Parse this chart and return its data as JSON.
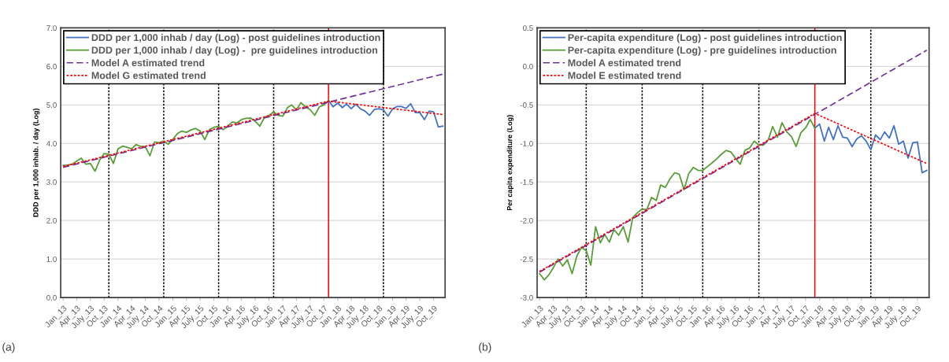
{
  "chart_data": [
    {
      "type": "line",
      "ylabel": "DDD per 1,000 inhab. / day (Log)",
      "annotations": [
        "(a)"
      ],
      "xlim": [
        "2012-12-16",
        "2019-12-16"
      ],
      "xticks": [
        {
          "value": "2013-01",
          "label": "Jan_13"
        },
        {
          "value": "2013-04",
          "label": "Apr_13"
        },
        {
          "value": "2013-07",
          "label": "July_13"
        },
        {
          "value": "2013-10",
          "label": "Oct_13"
        },
        {
          "value": "2014-01",
          "label": "Jan_14"
        },
        {
          "value": "2014-04",
          "label": "Apr_14"
        },
        {
          "value": "2014-07",
          "label": "July_14"
        },
        {
          "value": "2014-10",
          "label": "Oct_14"
        },
        {
          "value": "2015-01",
          "label": "Jan_15"
        },
        {
          "value": "2015-04",
          "label": "Apr_15"
        },
        {
          "value": "2015-07",
          "label": "July_15"
        },
        {
          "value": "2015-10",
          "label": "Oct_15"
        },
        {
          "value": "2016-01",
          "label": "Jan_16"
        },
        {
          "value": "2016-04",
          "label": "Apr_16"
        },
        {
          "value": "2016-07",
          "label": "July_16"
        },
        {
          "value": "2016-10",
          "label": "Oct_16"
        },
        {
          "value": "2017-01",
          "label": "Jan_17"
        },
        {
          "value": "2017-04",
          "label": "Apr_17"
        },
        {
          "value": "2017-07",
          "label": "July_17"
        },
        {
          "value": "2017-10",
          "label": "Oct_17"
        },
        {
          "value": "2018-01",
          "label": "Jan_18"
        },
        {
          "value": "2018-04",
          "label": "Apr_18"
        },
        {
          "value": "2018-07",
          "label": "July_18"
        },
        {
          "value": "2018-10",
          "label": "Oct_18"
        },
        {
          "value": "2019-01",
          "label": "Jan_19"
        },
        {
          "value": "2019-04",
          "label": "Apr_19"
        },
        {
          "value": "2019-07",
          "label": "July_19"
        },
        {
          "value": "2019-10",
          "label": "Oct_19"
        }
      ],
      "ylim": [
        0,
        7
      ],
      "yticks": [
        {
          "value": 0,
          "label": "0.0"
        },
        {
          "value": 1,
          "label": "1.0"
        },
        {
          "value": 2,
          "label": "2.0"
        },
        {
          "value": 3,
          "label": "3.0"
        },
        {
          "value": 4,
          "label": "4.0"
        },
        {
          "value": 5,
          "label": "5.0"
        },
        {
          "value": 6,
          "label": "6.0"
        },
        {
          "value": 7,
          "label": "7.0"
        }
      ],
      "grid": "y",
      "legend": "top left",
      "ref_lines": [
        {
          "axis": "x",
          "value": "2013-11",
          "color": "#000000",
          "line_style": "dotted"
        },
        {
          "axis": "x",
          "value": "2014-11",
          "color": "#000000",
          "line_style": "dotted"
        },
        {
          "axis": "x",
          "value": "2015-11",
          "color": "#000000",
          "line_style": "dotted"
        },
        {
          "axis": "x",
          "value": "2016-11",
          "color": "#000000",
          "line_style": "dotted"
        },
        {
          "axis": "x",
          "value": "2017-11",
          "color": "#ff0000",
          "line_style": "solid"
        },
        {
          "axis": "x",
          "value": "2018-11",
          "color": "#000000",
          "line_style": "dotted"
        }
      ],
      "series": [
        {
          "name": "DDD per 1,000 inhab / day (Log) - post guidelines introduction",
          "color": "#4472c4",
          "line_style": "solid",
          "x": [
            "2017-11",
            "2017-12",
            "2018-01",
            "2018-02",
            "2018-03",
            "2018-04",
            "2018-05",
            "2018-06",
            "2018-07",
            "2018-08",
            "2018-09",
            "2018-10",
            "2018-11",
            "2018-12",
            "2019-01",
            "2019-02",
            "2019-03",
            "2019-04",
            "2019-05",
            "2019-06",
            "2019-07",
            "2019-08",
            "2019-09",
            "2019-10",
            "2019-11",
            "2019-12"
          ],
          "values": [
            5.12,
            4.95,
            5.05,
            4.93,
            5.02,
            4.9,
            5.02,
            4.9,
            4.84,
            4.73,
            4.88,
            4.9,
            4.87,
            4.71,
            4.9,
            4.96,
            4.96,
            4.91,
            5.03,
            4.8,
            4.8,
            4.62,
            4.84,
            4.82,
            4.43,
            4.45
          ]
        },
        {
          "name": "DDD per 1,000 inhab / day (Log) -  pre guidelines introduction",
          "color": "#5a9e3a",
          "line_style": "solid",
          "x": [
            "2013-01",
            "2013-02",
            "2013-03",
            "2013-04",
            "2013-05",
            "2013-06",
            "2013-07",
            "2013-08",
            "2013-09",
            "2013-10",
            "2013-11",
            "2013-12",
            "2014-01",
            "2014-02",
            "2014-03",
            "2014-04",
            "2014-05",
            "2014-06",
            "2014-07",
            "2014-08",
            "2014-09",
            "2014-10",
            "2014-11",
            "2014-12",
            "2015-01",
            "2015-02",
            "2015-03",
            "2015-04",
            "2015-05",
            "2015-06",
            "2015-07",
            "2015-08",
            "2015-09",
            "2015-10",
            "2015-11",
            "2015-12",
            "2016-01",
            "2016-02",
            "2016-03",
            "2016-04",
            "2016-05",
            "2016-06",
            "2016-07",
            "2016-08",
            "2016-09",
            "2016-10",
            "2016-11",
            "2016-12",
            "2017-01",
            "2017-02",
            "2017-03",
            "2017-04",
            "2017-05",
            "2017-06",
            "2017-07",
            "2017-08",
            "2017-09",
            "2017-10",
            "2017-11"
          ],
          "values": [
            3.43,
            3.44,
            3.46,
            3.54,
            3.62,
            3.46,
            3.48,
            3.28,
            3.57,
            3.74,
            3.72,
            3.48,
            3.86,
            3.93,
            3.9,
            3.86,
            3.97,
            3.92,
            3.92,
            3.68,
            4.04,
            4.02,
            4.06,
            3.98,
            4.11,
            4.26,
            4.32,
            4.29,
            4.35,
            4.39,
            4.32,
            4.1,
            4.36,
            4.42,
            4.44,
            4.36,
            4.45,
            4.56,
            4.53,
            4.62,
            4.65,
            4.66,
            4.58,
            4.45,
            4.68,
            4.73,
            4.82,
            4.73,
            4.71,
            4.93,
            5.0,
            4.87,
            5.06,
            4.95,
            4.88,
            4.73,
            4.95,
            5.0,
            5.12
          ]
        },
        {
          "name": "Model A estimated trend",
          "color": "#7030a0",
          "line_style": "dashed",
          "x": [
            "2013-01",
            "2019-12"
          ],
          "values": [
            3.38,
            5.8
          ]
        },
        {
          "name": "Model G estimated trend",
          "color": "#ff0000",
          "line_style": "dotted",
          "x": [
            "2013-01",
            "2017-11",
            "2019-12"
          ],
          "values": [
            3.4,
            5.1,
            4.75
          ]
        }
      ]
    },
    {
      "type": "line",
      "ylabel": "Per capita expenditure (Log)",
      "annotations": [
        "(b)"
      ],
      "xlim": [
        "2012-12-16",
        "2019-12-16"
      ],
      "xticks": [
        {
          "value": "2013-01",
          "label": "Jan_13"
        },
        {
          "value": "2013-04",
          "label": "Apr_13"
        },
        {
          "value": "2013-07",
          "label": "July_13"
        },
        {
          "value": "2013-10",
          "label": "Oct_13"
        },
        {
          "value": "2014-01",
          "label": "Jan_14"
        },
        {
          "value": "2014-04",
          "label": "Apr_14"
        },
        {
          "value": "2014-07",
          "label": "July_14"
        },
        {
          "value": "2014-10",
          "label": "Oct_14"
        },
        {
          "value": "2015-01",
          "label": "Jan_15"
        },
        {
          "value": "2015-04",
          "label": "Apr_15"
        },
        {
          "value": "2015-07",
          "label": "July_15"
        },
        {
          "value": "2015-10",
          "label": "Oct_15"
        },
        {
          "value": "2016-01",
          "label": "Jan_16"
        },
        {
          "value": "2016-04",
          "label": "Apr_16"
        },
        {
          "value": "2016-07",
          "label": "July_16"
        },
        {
          "value": "2016-10",
          "label": "Oct_16"
        },
        {
          "value": "2017-01",
          "label": "Jan_17"
        },
        {
          "value": "2017-04",
          "label": "Apr_17"
        },
        {
          "value": "2017-07",
          "label": "July_17"
        },
        {
          "value": "2017-10",
          "label": "Oct_17"
        },
        {
          "value": "2018-01",
          "label": "Jan_18"
        },
        {
          "value": "2018-04",
          "label": "Apr_18"
        },
        {
          "value": "2018-07",
          "label": "July_18"
        },
        {
          "value": "2018-10",
          "label": "Oct_18"
        },
        {
          "value": "2019-01",
          "label": "Jan_19"
        },
        {
          "value": "2019-04",
          "label": "Apr_19"
        },
        {
          "value": "2019-07",
          "label": "July_19"
        },
        {
          "value": "2019-10",
          "label": "Oct_19"
        }
      ],
      "ylim": [
        -3,
        0.5
      ],
      "yticks": [
        {
          "value": -3,
          "label": "-3.0"
        },
        {
          "value": -2.5,
          "label": "-2.5"
        },
        {
          "value": -2,
          "label": "-2.0"
        },
        {
          "value": -1.5,
          "label": "-1.5"
        },
        {
          "value": -1,
          "label": "-1.0"
        },
        {
          "value": -0.5,
          "label": "-0.5"
        },
        {
          "value": 0,
          "label": "0.0"
        },
        {
          "value": 0.5,
          "label": "0.5"
        }
      ],
      "grid": "y",
      "legend": "top left",
      "ref_lines": [
        {
          "axis": "x",
          "value": "2013-11",
          "color": "#000000",
          "line_style": "dotted"
        },
        {
          "axis": "x",
          "value": "2014-11",
          "color": "#000000",
          "line_style": "dotted"
        },
        {
          "axis": "x",
          "value": "2015-12",
          "color": "#000000",
          "line_style": "dotted"
        },
        {
          "axis": "x",
          "value": "2016-12",
          "color": "#000000",
          "line_style": "dotted"
        },
        {
          "axis": "x",
          "value": "2017-12",
          "color": "#ff0000",
          "line_style": "solid"
        },
        {
          "axis": "x",
          "value": "2018-12",
          "color": "#000000",
          "line_style": "dotted"
        }
      ],
      "series": [
        {
          "name": "Per-capita expenditure (Log) - post guidelines introduction",
          "color": "#4472c4",
          "line_style": "solid",
          "x": [
            "2017-12",
            "2018-01",
            "2018-02",
            "2018-03",
            "2018-04",
            "2018-05",
            "2018-06",
            "2018-07",
            "2018-08",
            "2018-09",
            "2018-10",
            "2018-11",
            "2018-12",
            "2019-01",
            "2019-02",
            "2019-03",
            "2019-04",
            "2019-05",
            "2019-06",
            "2019-07",
            "2019-08",
            "2019-09",
            "2019-10",
            "2019-11",
            "2019-12"
          ],
          "values": [
            -0.8,
            -0.75,
            -0.97,
            -0.79,
            -0.95,
            -0.77,
            -0.92,
            -0.93,
            -1.04,
            -0.94,
            -0.9,
            -0.97,
            -1.08,
            -0.89,
            -0.95,
            -0.85,
            -0.93,
            -0.77,
            -1.01,
            -0.97,
            -1.19,
            -0.99,
            -0.98,
            -1.38,
            -1.35
          ]
        },
        {
          "name": "Per-capita expenditure (Log) - pre guidelines introduction",
          "color": "#5a9e3a",
          "line_style": "solid",
          "x": [
            "2013-01",
            "2013-02",
            "2013-03",
            "2013-04",
            "2013-05",
            "2013-06",
            "2013-07",
            "2013-08",
            "2013-09",
            "2013-10",
            "2013-11",
            "2013-12",
            "2014-01",
            "2014-02",
            "2014-03",
            "2014-04",
            "2014-05",
            "2014-06",
            "2014-07",
            "2014-08",
            "2014-09",
            "2014-10",
            "2014-11",
            "2014-12",
            "2015-01",
            "2015-02",
            "2015-03",
            "2015-04",
            "2015-05",
            "2015-06",
            "2015-07",
            "2015-08",
            "2015-09",
            "2015-10",
            "2015-11",
            "2015-12",
            "2016-01",
            "2016-02",
            "2016-03",
            "2016-04",
            "2016-05",
            "2016-06",
            "2016-07",
            "2016-08",
            "2016-09",
            "2016-10",
            "2016-11",
            "2016-12",
            "2017-01",
            "2017-02",
            "2017-03",
            "2017-04",
            "2017-05",
            "2017-06",
            "2017-07",
            "2017-08",
            "2017-09",
            "2017-10",
            "2017-11",
            "2017-12"
          ],
          "values": [
            -2.69,
            -2.77,
            -2.71,
            -2.61,
            -2.5,
            -2.59,
            -2.51,
            -2.69,
            -2.46,
            -2.35,
            -2.39,
            -2.58,
            -2.08,
            -2.29,
            -2.18,
            -2.28,
            -2.12,
            -2.19,
            -2.08,
            -2.28,
            -1.96,
            -1.9,
            -1.85,
            -1.86,
            -1.7,
            -1.74,
            -1.54,
            -1.57,
            -1.46,
            -1.38,
            -1.4,
            -1.6,
            -1.39,
            -1.31,
            -1.35,
            -1.35,
            -1.3,
            -1.25,
            -1.2,
            -1.14,
            -1.09,
            -1.11,
            -1.19,
            -1.27,
            -1.09,
            -1.06,
            -0.97,
            -1.02,
            -1.02,
            -0.95,
            -0.78,
            -0.92,
            -0.73,
            -0.85,
            -0.91,
            -1.04,
            -0.86,
            -0.8,
            -0.69,
            -0.8
          ]
        },
        {
          "name": "Model A estimated trend",
          "color": "#7030a0",
          "line_style": "dashed",
          "x": [
            "2013-01",
            "2019-12"
          ],
          "values": [
            -2.67,
            0.21
          ]
        },
        {
          "name": "Model E estimated trend",
          "color": "#ff0000",
          "line_style": "dotted",
          "x": [
            "2013-01",
            "2017-12",
            "2019-12"
          ],
          "values": [
            -2.66,
            -0.61,
            -1.26
          ]
        }
      ]
    }
  ]
}
